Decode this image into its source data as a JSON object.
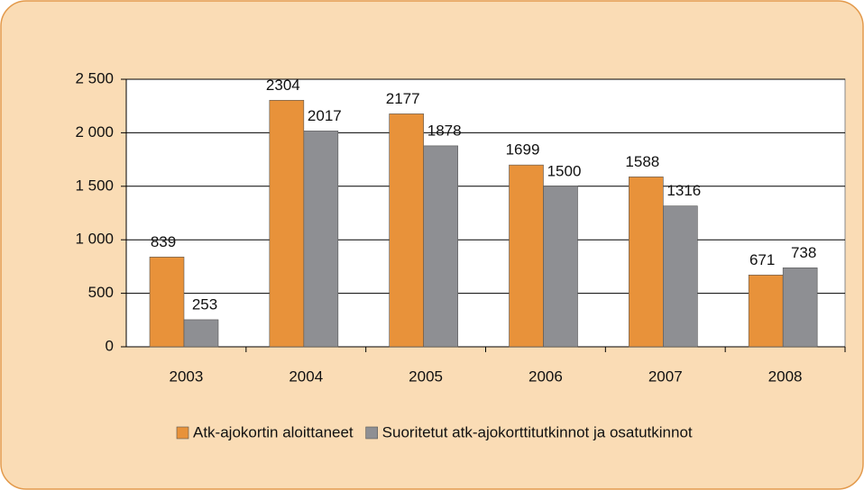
{
  "chart_data": {
    "type": "bar",
    "categories": [
      "2003",
      "2004",
      "2005",
      "2006",
      "2007",
      "2008"
    ],
    "series": [
      {
        "name": "Atk-ajokortin aloittaneet",
        "color": "#e8923a",
        "values": [
          839,
          2304,
          2177,
          1699,
          1588,
          671
        ]
      },
      {
        "name": "Suoritetut atk-ajokorttitutkinnot ja osatutkinnot",
        "color": "#8e8f93",
        "values": [
          253,
          2017,
          1878,
          1500,
          1316,
          738
        ]
      }
    ],
    "ylim": [
      0,
      2500
    ],
    "yticks": [
      0,
      {
        "value": 500,
        "label": "500"
      },
      {
        "value": 1000,
        "label": "1 000"
      },
      {
        "value": 1500,
        "label": "1 500"
      },
      {
        "value": 2000,
        "label": "2 000"
      },
      {
        "value": 2500,
        "label": "2 500"
      }
    ],
    "grid": true,
    "legend": "bottom"
  }
}
